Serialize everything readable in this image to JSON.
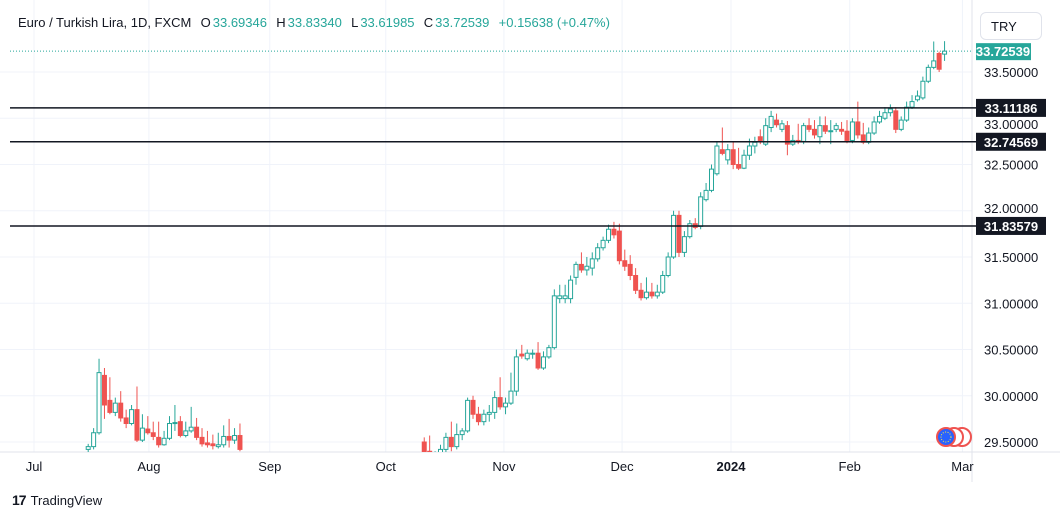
{
  "legend": {
    "symbol": "Euro / Turkish Lira, 1D, FXCM",
    "open_label": "O",
    "open": "33.69346",
    "high_label": "H",
    "high": "33.83340",
    "low_label": "L",
    "low": "33.61985",
    "close_label": "C",
    "close": "33.72539",
    "change": "+0.15638 (+0.47%)"
  },
  "currency_button": "TRY",
  "footer": {
    "logo": "17",
    "brand": "TradingView"
  },
  "colors": {
    "up": "#26a69a",
    "down": "#ef5350",
    "level": "#131722",
    "grid": "#f0f3fa"
  },
  "chart_data": {
    "type": "candlestick",
    "title": "Euro / Turkish Lira, 1D, FXCM",
    "ylim": [
      29.43,
      33.93
    ],
    "y_ticks": [
      "29.50000",
      "30.00000",
      "30.50000",
      "31.00000",
      "31.50000",
      "32.00000",
      "32.50000",
      "33.00000",
      "33.50000"
    ],
    "x_ticks": [
      {
        "label": "Jul",
        "day": 0
      },
      {
        "label": "Aug",
        "day": 21.2
      },
      {
        "label": "Sep",
        "day": 43.5
      },
      {
        "label": "Oct",
        "day": 64.9
      },
      {
        "label": "Nov",
        "day": 86.7
      },
      {
        "label": "Dec",
        "day": 108.5
      },
      {
        "label": "2024",
        "day": 128.6,
        "bold": true
      },
      {
        "label": "Feb",
        "day": 150.5
      },
      {
        "label": "Mar",
        "day": 171.3
      }
    ],
    "last_price": "33.72539",
    "levels": [
      "33.11186",
      "32.74569",
      "31.83579"
    ],
    "segments": [
      {
        "start_day": 10,
        "ohlc": [
          [
            29.42,
            29.48,
            29.38,
            29.45
          ],
          [
            29.45,
            29.65,
            29.42,
            29.6
          ],
          [
            29.6,
            30.4,
            29.58,
            30.25
          ],
          [
            30.22,
            30.3,
            29.75,
            29.9
          ],
          [
            29.95,
            30.2,
            29.8,
            29.82
          ],
          [
            29.82,
            29.98,
            29.78,
            29.92
          ],
          [
            29.92,
            30.05,
            29.72,
            29.76
          ],
          [
            29.76,
            29.85,
            29.65,
            29.7
          ],
          [
            29.7,
            29.9,
            29.68,
            29.85
          ],
          [
            29.85,
            30.1,
            29.5,
            29.52
          ],
          [
            29.52,
            29.8,
            29.5,
            29.65
          ],
          [
            29.64,
            29.78,
            29.58,
            29.6
          ],
          [
            29.6,
            29.72,
            29.52,
            29.56
          ],
          [
            29.55,
            29.72,
            29.44,
            29.47
          ],
          [
            29.47,
            29.62,
            29.46,
            29.54
          ],
          [
            29.54,
            29.78,
            29.52,
            29.7
          ],
          [
            29.7,
            29.9,
            29.62,
            29.71
          ],
          [
            29.72,
            29.78,
            29.55,
            29.57
          ],
          [
            29.57,
            29.72,
            29.55,
            29.62
          ],
          [
            29.62,
            29.88,
            29.6,
            29.66
          ],
          [
            29.66,
            29.76,
            29.52,
            29.55
          ],
          [
            29.55,
            29.65,
            29.45,
            29.48
          ],
          [
            29.49,
            29.62,
            29.44,
            29.47
          ],
          [
            29.48,
            29.58,
            29.42,
            29.46
          ],
          [
            29.45,
            29.6,
            29.43,
            29.47
          ],
          [
            29.47,
            29.68,
            29.44,
            29.56
          ],
          [
            29.56,
            29.75,
            29.44,
            29.52
          ],
          [
            29.52,
            29.65,
            29.48,
            29.57
          ],
          [
            29.57,
            29.7,
            29.4,
            29.42
          ]
        ]
      },
      {
        "start_day": 72,
        "ohlc": [
          [
            29.5,
            29.55,
            29.3,
            29.35
          ],
          [
            29.4,
            29.57,
            29.3,
            29.35
          ],
          [
            29.3,
            29.4,
            29.2,
            29.35
          ],
          [
            29.35,
            29.47,
            29.3,
            29.42
          ],
          [
            29.42,
            29.6,
            29.38,
            29.55
          ],
          [
            29.55,
            29.72,
            29.4,
            29.45
          ],
          [
            29.45,
            29.7,
            29.42,
            29.58
          ],
          [
            29.58,
            29.65,
            29.52,
            29.62
          ],
          [
            29.62,
            29.98,
            29.6,
            29.95
          ],
          [
            29.95,
            30.0,
            29.75,
            29.8
          ],
          [
            29.8,
            29.88,
            29.68,
            29.72
          ],
          [
            29.72,
            29.85,
            29.68,
            29.8
          ],
          [
            29.8,
            29.9,
            29.72,
            29.82
          ],
          [
            29.82,
            30.05,
            29.75,
            29.98
          ],
          [
            29.98,
            30.2,
            29.85,
            29.88
          ],
          [
            29.88,
            29.98,
            29.8,
            29.92
          ],
          [
            29.92,
            30.25,
            29.9,
            30.05
          ],
          [
            30.05,
            30.5,
            30.0,
            30.42
          ],
          [
            30.45,
            30.55,
            30.4,
            30.43
          ],
          [
            30.4,
            30.5,
            30.38,
            30.46
          ],
          [
            30.45,
            30.5,
            30.4,
            30.46
          ],
          [
            30.46,
            30.58,
            30.28,
            30.3
          ],
          [
            30.3,
            30.48,
            30.28,
            30.42
          ],
          [
            30.42,
            30.55,
            30.4,
            30.52
          ],
          [
            30.52,
            31.15,
            30.5,
            31.08
          ],
          [
            31.05,
            31.2,
            31.0,
            31.08
          ],
          [
            31.05,
            31.2,
            31.0,
            31.08
          ],
          [
            31.05,
            31.3,
            31.0,
            31.25
          ],
          [
            31.28,
            31.45,
            31.2,
            31.42
          ],
          [
            31.42,
            31.55,
            31.33,
            31.36
          ],
          [
            31.36,
            31.5,
            31.3,
            31.4
          ],
          [
            31.38,
            31.55,
            31.3,
            31.48
          ],
          [
            31.48,
            31.65,
            31.45,
            31.6
          ],
          [
            31.6,
            31.72,
            31.57,
            31.68
          ],
          [
            31.68,
            31.85,
            31.65,
            31.8
          ],
          [
            31.8,
            31.88,
            31.7,
            31.74
          ],
          [
            31.78,
            31.86,
            31.42,
            31.46
          ],
          [
            31.46,
            31.58,
            31.35,
            31.4
          ],
          [
            31.42,
            31.52,
            31.25,
            31.3
          ],
          [
            31.3,
            31.38,
            31.1,
            31.14
          ],
          [
            31.14,
            31.22,
            31.03,
            31.06
          ],
          [
            31.06,
            31.28,
            31.04,
            31.12
          ],
          [
            31.12,
            31.22,
            31.05,
            31.08
          ],
          [
            31.08,
            31.2,
            31.05,
            31.12
          ],
          [
            31.12,
            31.35,
            31.1,
            31.3
          ],
          [
            31.3,
            31.55,
            31.28,
            31.5
          ],
          [
            31.5,
            32.0,
            31.48,
            31.95
          ],
          [
            31.95,
            32.0,
            31.5,
            31.55
          ],
          [
            31.55,
            31.78,
            31.5,
            31.72
          ],
          [
            31.72,
            31.9,
            31.7,
            31.86
          ],
          [
            31.86,
            31.92,
            31.8,
            31.82
          ],
          [
            31.83,
            32.2,
            31.8,
            32.15
          ],
          [
            32.12,
            32.3,
            32.1,
            32.22
          ],
          [
            32.22,
            32.5,
            32.2,
            32.45
          ],
          [
            32.4,
            32.75,
            32.38,
            32.7
          ],
          [
            32.66,
            32.9,
            32.6,
            32.62
          ],
          [
            32.55,
            32.72,
            32.5,
            32.66
          ],
          [
            32.66,
            32.75,
            32.45,
            32.5
          ],
          [
            32.5,
            32.68,
            32.44,
            32.46
          ],
          [
            32.46,
            32.66,
            32.45,
            32.6
          ],
          [
            32.6,
            32.78,
            32.55,
            32.7
          ],
          [
            32.7,
            32.8,
            32.62,
            32.74
          ],
          [
            32.8,
            32.88,
            32.72,
            32.76
          ],
          [
            32.72,
            33.0,
            32.7,
            32.92
          ],
          [
            32.9,
            33.08,
            32.85,
            33.02
          ],
          [
            32.98,
            33.05,
            32.9,
            32.93
          ],
          [
            32.88,
            32.98,
            32.85,
            32.94
          ],
          [
            32.92,
            32.97,
            32.6,
            32.72
          ],
          [
            32.72,
            32.82,
            32.7,
            32.76
          ],
          [
            32.76,
            32.94,
            32.72,
            32.75
          ],
          [
            32.75,
            32.95,
            32.72,
            32.92
          ],
          [
            32.92,
            33.0,
            32.85,
            32.88
          ],
          [
            32.88,
            32.98,
            32.78,
            32.82
          ],
          [
            32.8,
            33.02,
            32.72,
            32.92
          ],
          [
            32.92,
            33.02,
            32.83,
            32.86
          ],
          [
            32.86,
            32.98,
            32.72,
            32.865
          ],
          [
            32.88,
            32.95,
            32.85,
            32.92
          ],
          [
            32.88,
            32.96,
            32.82,
            32.86
          ],
          [
            32.86,
            32.98,
            32.73,
            32.76
          ],
          [
            32.76,
            33.0,
            32.73,
            32.96
          ],
          [
            32.96,
            33.18,
            32.78,
            32.82
          ],
          [
            32.82,
            32.95,
            32.72,
            32.74
          ],
          [
            32.74,
            32.9,
            32.72,
            32.84
          ],
          [
            32.84,
            33.02,
            32.82,
            32.96
          ],
          [
            32.96,
            33.08,
            32.94,
            33.02
          ],
          [
            33.0,
            33.12,
            32.98,
            33.06
          ],
          [
            33.06,
            33.15,
            33.02,
            33.1
          ],
          [
            33.08,
            33.12,
            32.84,
            32.88
          ],
          [
            32.88,
            33.02,
            32.86,
            32.98
          ],
          [
            32.98,
            33.18,
            32.96,
            33.12
          ],
          [
            33.12,
            33.25,
            33.1,
            33.18
          ],
          [
            33.2,
            33.3,
            33.18,
            33.24
          ],
          [
            33.22,
            33.45,
            33.2,
            33.4
          ],
          [
            33.4,
            33.58,
            33.38,
            33.55
          ],
          [
            33.55,
            33.83,
            33.53,
            33.62
          ],
          [
            33.7,
            33.72,
            33.5,
            33.53
          ],
          [
            33.69346,
            33.8334,
            33.61985,
            33.72539
          ]
        ]
      }
    ]
  }
}
